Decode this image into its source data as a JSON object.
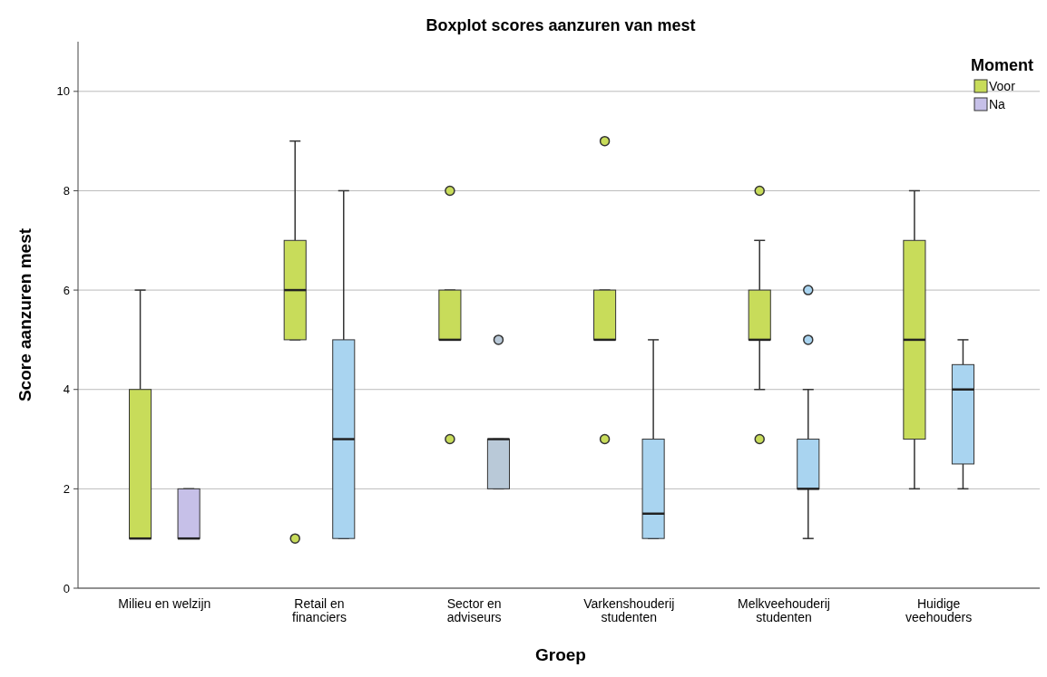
{
  "chart_data": {
    "type": "box",
    "title": "Boxplot scores aanzuren van mest",
    "xlabel": "Groep",
    "ylabel": "Score aanzuren mest",
    "legend_title": "Moment",
    "categories": [
      "Milieu en welzijn",
      "Retail en financiers",
      "Sector en adviseurs",
      "Varkenshouderij studenten",
      "Melkveehouderij studenten",
      "Huidige veehouders"
    ],
    "ylim": [
      0,
      11
    ],
    "yticks": [
      0,
      2,
      4,
      6,
      8,
      10
    ],
    "grid": "y",
    "legend": "top right",
    "marker": "circle",
    "series": [
      {
        "name": "Voor",
        "color": "#c8dc5a",
        "boxes": [
          {
            "low": 1,
            "q1": 1,
            "median": 1,
            "q3": 4,
            "high": 6
          },
          {
            "low": 5,
            "q1": 5,
            "median": 6,
            "q3": 7,
            "high": 9,
            "outliers": [
              1
            ]
          },
          {
            "low": 5,
            "q1": 5,
            "median": 5,
            "q3": 6,
            "high": 6,
            "outliers": [
              3,
              8
            ]
          },
          {
            "low": 5,
            "q1": 5,
            "median": 5,
            "q3": 6,
            "high": 6,
            "outliers": [
              3,
              9
            ]
          },
          {
            "low": 4,
            "q1": 5,
            "median": 5,
            "q3": 6,
            "high": 7,
            "outliers": [
              3,
              8
            ]
          },
          {
            "low": 2,
            "q1": 3,
            "median": 5,
            "q3": 7,
            "high": 8
          }
        ]
      },
      {
        "name": "Na",
        "color": "#c6c0e8",
        "colors": [
          "#c6c0e8",
          "#a9d4f0",
          "#b9c9d8",
          "#a9d4f0",
          "#a9d4f0",
          "#a9d4f0"
        ],
        "boxes": [
          {
            "low": 1,
            "q1": 1,
            "median": 1,
            "q3": 2,
            "high": 2
          },
          {
            "low": 1,
            "q1": 1,
            "median": 3,
            "q3": 5,
            "high": 8
          },
          {
            "low": 2,
            "q1": 2,
            "median": 3,
            "q3": 3,
            "high": 3,
            "outliers": [
              5
            ]
          },
          {
            "low": 1,
            "q1": 1,
            "median": 1.5,
            "q3": 3,
            "high": 5
          },
          {
            "low": 1,
            "q1": 2,
            "median": 2,
            "q3": 3,
            "high": 4,
            "outliers": [
              5,
              6
            ]
          },
          {
            "low": 2,
            "q1": 2.5,
            "median": 4,
            "q3": 4.5,
            "high": 5
          }
        ]
      }
    ]
  }
}
